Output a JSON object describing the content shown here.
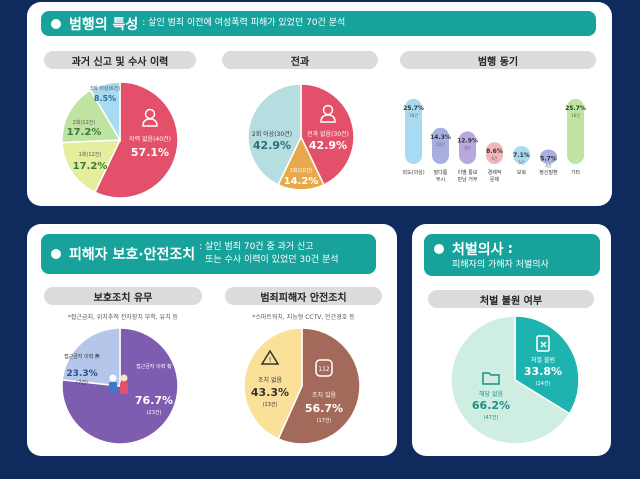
{
  "section1": {
    "title": "범행의 특성",
    "subtitle": ": 살인 범죄 이전에 여성폭력 피해가 있었던 70건 분석",
    "pill1": "과거 신고 및 수사 이력",
    "pill2": "전과",
    "pill3": "범행 동기"
  },
  "section2": {
    "title": "피해자 보호·안전조치",
    "subtitle_line1": ": 살인 범죄 70건 중 과거 신고",
    "subtitle_line2": "또는 수사 이력이 있었던 30건 분석",
    "pill1": "보호조치 유무",
    "pill2": "범죄피해자 안전조치",
    "note1": "*접근금지, 위치추적 전자장치 부착, 유치 등",
    "note2": "*스마트워치, 지능형 CCTV, 민간경호 등"
  },
  "section3": {
    "title": "처벌의사",
    "subtitle_prefix": ":",
    "subtitle": "피해자의 가해자 처벌의사",
    "pill1": "처벌 불원 여부"
  },
  "colors": {
    "navy": "#0f2a5c",
    "teal": "#17a39b",
    "pink": "#e2506a",
    "purple": "#7e5db0",
    "orange": "#e8a94a"
  },
  "icons": [
    "person-icon",
    "people-icon",
    "warning-icon",
    "watch-icon",
    "document-x-icon",
    "folder-icon"
  ],
  "chart_data": [
    {
      "type": "pie",
      "name": "과거 신고 및 수사 이력",
      "slices": [
        {
          "label": "이력 없음",
          "count": "(40건)",
          "value": 57.1,
          "color": "#e2506a"
        },
        {
          "label": "1회",
          "count": "(12건)",
          "value": 17.2,
          "color": "#e4ee9c"
        },
        {
          "label": "2회",
          "count": "(12건)",
          "value": 17.2,
          "color": "#bfe3a1"
        },
        {
          "label": "3회 이상",
          "count": "(6건)",
          "value": 8.5,
          "color": "#a8daf1"
        }
      ]
    },
    {
      "type": "pie",
      "name": "전과",
      "slices": [
        {
          "label": "전과 없음",
          "count": "(30건)",
          "value": 42.9,
          "color": "#e2506a"
        },
        {
          "label": "1회",
          "count": "(10건)",
          "value": 14.2,
          "color": "#e8a94a"
        },
        {
          "label": "2회 이상",
          "count": "(30건)",
          "value": 42.9,
          "color": "#b6dde0"
        }
      ]
    },
    {
      "type": "bar",
      "name": "범행 동기",
      "categories": [
        "외도(의심)",
        "말다툼 무시",
        "이별 통보 만남 거부",
        "경제적 문제",
        "보복",
        "정신질환",
        "기타"
      ],
      "values": [
        25.7,
        14.3,
        12.9,
        8.6,
        7.1,
        5.7,
        25.7
      ],
      "counts": [
        "18건",
        "10건",
        "9건",
        "6건",
        "5건",
        "4건",
        "18건"
      ],
      "colors": [
        "#a8daf1",
        "#a7aee0",
        "#b9a8de",
        "#f2b6b9",
        "#a8daf1",
        "#a7aee0",
        "#bfe3a1"
      ],
      "ylim": [
        0,
        30
      ]
    },
    {
      "type": "pie",
      "name": "보호조치 유무",
      "slices": [
        {
          "label": "접근금지 이력 有",
          "count": "(23건)",
          "value": 76.7,
          "color": "#7e5db0"
        },
        {
          "label": "접근금지 이력 無",
          "count": "(7건)",
          "value": 23.3,
          "color": "#b4c7ea"
        }
      ]
    },
    {
      "type": "pie",
      "name": "범죄피해자 안전조치",
      "slices": [
        {
          "label": "조치 있음",
          "count": "(17건)",
          "value": 56.7,
          "color": "#a36a5b"
        },
        {
          "label": "조치 없음",
          "count": "(13건)",
          "value": 43.3,
          "color": "#fbe09a"
        }
      ]
    },
    {
      "type": "pie",
      "name": "처벌 불원 여부",
      "slices": [
        {
          "label": "처벌 불원",
          "count": "(24건)",
          "value": 33.8,
          "color": "#1fb3b0"
        },
        {
          "label": "해당 없음",
          "count": "(47건)",
          "value": 66.2,
          "color": "#cfeee2"
        }
      ]
    }
  ]
}
